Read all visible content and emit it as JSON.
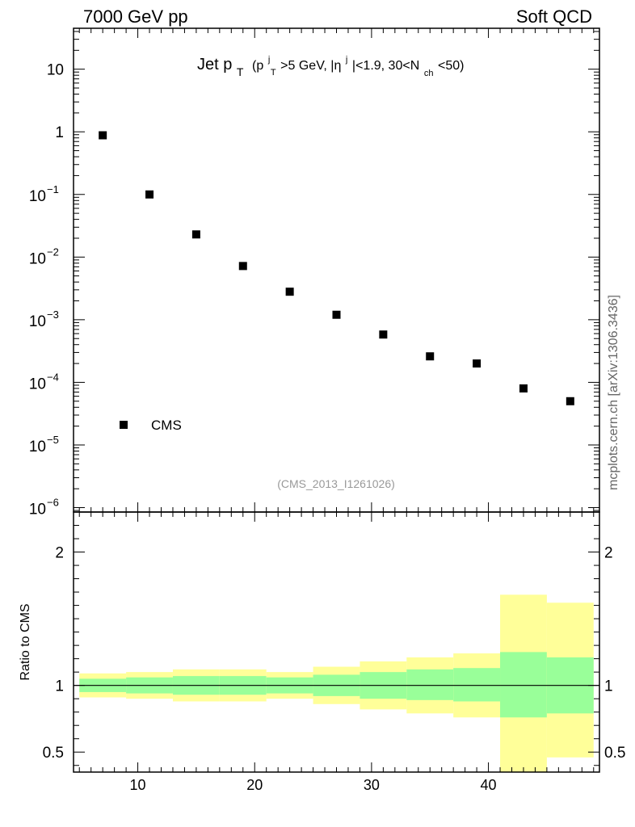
{
  "header": {
    "left": "7000 GeV pp",
    "right": "Soft QCD",
    "side": "mcplots.cern.ch [arXiv:1306.3436]"
  },
  "chart_data": {
    "type": "scatter",
    "title_parts": {
      "main": "Jet p",
      "main_sub": "T",
      "cut_prefix": "(p",
      "cut_p_sup": "j",
      "cut_p_sub": "T",
      "cut_mid": ">5 GeV, |η",
      "cut_eta_sup": "j",
      "cut_mid2": "|<1.9, 30<N",
      "cut_n_sub": "ch",
      "cut_suffix": "<50)"
    },
    "watermark": "(CMS_2013_I1261026)",
    "legend": {
      "label": "CMS",
      "position": "bottom-left"
    },
    "xlim": [
      4.5,
      49.5
    ],
    "x_ticks": [
      10,
      20,
      30,
      40
    ],
    "y_scale": "log",
    "ylim": [
      8.5e-07,
      45
    ],
    "y_ticks": [
      {
        "value": 10,
        "label": "10"
      },
      {
        "value": 1,
        "label": "1"
      },
      {
        "value": 0.1,
        "base": "10",
        "exp": "−1"
      },
      {
        "value": 0.01,
        "base": "10",
        "exp": "−2"
      },
      {
        "value": 0.001,
        "base": "10",
        "exp": "−3"
      },
      {
        "value": 0.0001,
        "base": "10",
        "exp": "−4"
      },
      {
        "value": 1e-05,
        "base": "10",
        "exp": "−5"
      },
      {
        "value": 1e-06,
        "base": "10",
        "exp": "−6"
      }
    ],
    "series": [
      {
        "name": "CMS",
        "x": [
          7,
          11,
          15,
          19,
          23,
          27,
          31,
          35,
          39,
          43,
          47
        ],
        "y": [
          0.88,
          0.1,
          0.023,
          0.0072,
          0.0028,
          0.0012,
          0.00058,
          0.00026,
          0.0002,
          8e-05,
          5e-05
        ]
      }
    ],
    "ratio": {
      "ylabel": "Ratio to CMS",
      "ylim": [
        0.35,
        2.3
      ],
      "y_ticks": [
        {
          "value": 2,
          "label": "2"
        },
        {
          "value": 1,
          "label": "1"
        },
        {
          "value": 0.5,
          "label": "0.5"
        }
      ],
      "bins": [
        {
          "lo": 5,
          "hi": 9,
          "inner": [
            0.95,
            1.05
          ],
          "outer": [
            0.91,
            1.09
          ]
        },
        {
          "lo": 9,
          "hi": 13,
          "inner": [
            0.94,
            1.06
          ],
          "outer": [
            0.9,
            1.1
          ]
        },
        {
          "lo": 13,
          "hi": 17,
          "inner": [
            0.93,
            1.07
          ],
          "outer": [
            0.88,
            1.12
          ]
        },
        {
          "lo": 17,
          "hi": 21,
          "inner": [
            0.93,
            1.07
          ],
          "outer": [
            0.88,
            1.12
          ]
        },
        {
          "lo": 21,
          "hi": 25,
          "inner": [
            0.94,
            1.06
          ],
          "outer": [
            0.9,
            1.1
          ]
        },
        {
          "lo": 25,
          "hi": 29,
          "inner": [
            0.92,
            1.08
          ],
          "outer": [
            0.86,
            1.14
          ]
        },
        {
          "lo": 29,
          "hi": 33,
          "inner": [
            0.9,
            1.1
          ],
          "outer": [
            0.82,
            1.18
          ]
        },
        {
          "lo": 33,
          "hi": 37,
          "inner": [
            0.89,
            1.12
          ],
          "outer": [
            0.79,
            1.21
          ]
        },
        {
          "lo": 37,
          "hi": 41,
          "inner": [
            0.88,
            1.13
          ],
          "outer": [
            0.76,
            1.24
          ]
        },
        {
          "lo": 41,
          "hi": 45,
          "inner": [
            0.76,
            1.25
          ],
          "outer": [
            0.35,
            1.68
          ]
        },
        {
          "lo": 45,
          "hi": 49,
          "inner": [
            0.79,
            1.21
          ],
          "outer": [
            0.46,
            1.62
          ]
        }
      ]
    },
    "colors": {
      "inner_band": "#99ff99",
      "outer_band": "#ffff99",
      "marker": "#000000"
    }
  }
}
